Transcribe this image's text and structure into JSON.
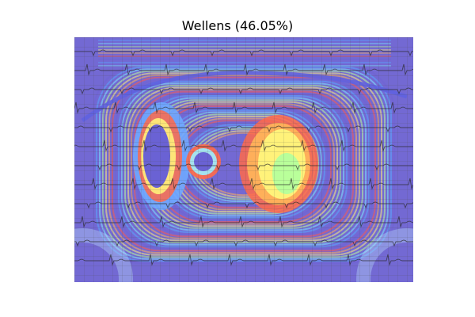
{
  "figure": {
    "title": "Wellens (46.05%)"
  },
  "overlay": {
    "kind": "ecg-heatmap-overlay",
    "colormap": "jet",
    "palette": [
      "#6f63d6",
      "#5aa8ff",
      "#7ee8ff",
      "#b9ff9a",
      "#fff27a",
      "#ffb35a",
      "#ff5a4a"
    ],
    "ecg_trace_color": "#2a2a2a",
    "grid_color": "#5b5b5b"
  }
}
